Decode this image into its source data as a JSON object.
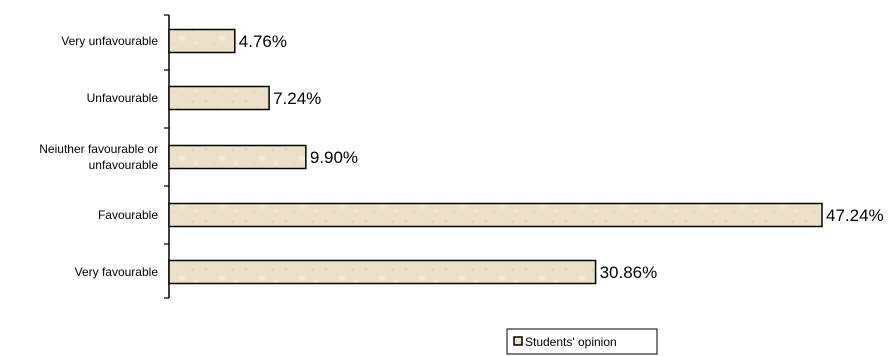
{
  "chart_data": {
    "type": "bar",
    "orientation": "horizontal",
    "categories": [
      "Very unfavourable",
      "Unfavourable",
      "Neiuther favourable or unfavourable",
      "Favourable",
      "Very favourable"
    ],
    "category_lines": [
      [
        "Very unfavourable"
      ],
      [
        "Unfavourable"
      ],
      [
        "Neiuther favourable or",
        "unfavourable"
      ],
      [
        "Favourable"
      ],
      [
        "Very favourable"
      ]
    ],
    "series": [
      {
        "name": "Students' opinion",
        "values": [
          4.76,
          7.24,
          9.9,
          47.24,
          30.86
        ],
        "labels": [
          "4.76%",
          "7.24%",
          "9.90%",
          "47.24%",
          "30.86%"
        ],
        "color": "#ece0c8"
      }
    ],
    "xlim": [
      0,
      47.24
    ],
    "grid": false,
    "legend_position": "bottom-center"
  }
}
